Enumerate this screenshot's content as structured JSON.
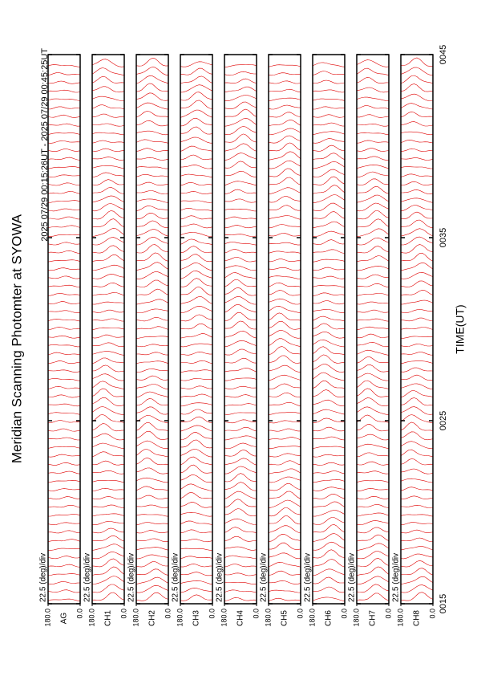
{
  "chart_data": {
    "type": "line",
    "title": "Meridian Scanning Photomter at SYOWA",
    "subtitle": "2025 07/29 00:15:26UT - 2025 07/29 00:45:25UT",
    "x_label": "TIME(UT)",
    "xlim": [
      15,
      45
    ],
    "xticks": [
      {
        "value": 15,
        "label": "0015"
      },
      {
        "value": 25,
        "label": "0025"
      },
      {
        "value": 35,
        "label": "0035"
      },
      {
        "value": 45,
        "label": "0045"
      }
    ],
    "ylim": [
      0,
      180
    ],
    "yticks": [
      {
        "value": 0,
        "label": "0.0"
      },
      {
        "value": 180,
        "label": "180.0"
      }
    ],
    "color": "#e00000",
    "panels": [
      {
        "name": "AG",
        "scale": "22.5 (deg)/div"
      },
      {
        "name": "CH1",
        "scale": "22.5 (deg)/div"
      },
      {
        "name": "CH2",
        "scale": "22.5 (deg)/div"
      },
      {
        "name": "CH3",
        "scale": "22.5 (deg)/div"
      },
      {
        "name": "CH4",
        "scale": "22.5 (deg)/div"
      },
      {
        "name": "CH5",
        "scale": "22.5 (deg)/div"
      },
      {
        "name": "CH6",
        "scale": "22.5 (deg)/div"
      },
      {
        "name": "CH7",
        "scale": "22.5 (deg)/div"
      },
      {
        "name": "CH8",
        "scale": "22.5 (deg)/div"
      }
    ]
  }
}
